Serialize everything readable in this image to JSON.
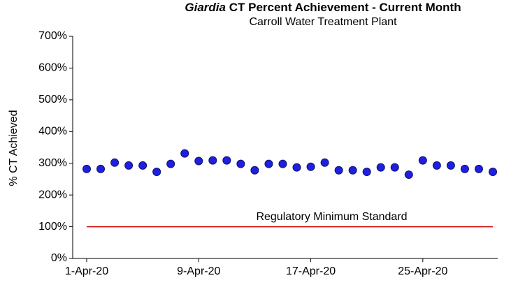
{
  "chart_data": {
    "type": "scatter",
    "title": {
      "italic": "Giardia",
      "rest": "CT Percent Achievement - Current Month"
    },
    "subtitle": "Carroll Water Treatment Plant",
    "y_label": "% CT Achieved",
    "x": [
      "2020-04-01",
      "2020-04-02",
      "2020-04-03",
      "2020-04-04",
      "2020-04-05",
      "2020-04-06",
      "2020-04-07",
      "2020-04-08",
      "2020-04-09",
      "2020-04-10",
      "2020-04-11",
      "2020-04-12",
      "2020-04-13",
      "2020-04-14",
      "2020-04-15",
      "2020-04-16",
      "2020-04-17",
      "2020-04-18",
      "2020-04-19",
      "2020-04-20",
      "2020-04-21",
      "2020-04-22",
      "2020-04-23",
      "2020-04-24",
      "2020-04-25",
      "2020-04-26",
      "2020-04-27",
      "2020-04-28",
      "2020-04-29",
      "2020-04-30"
    ],
    "series": [
      {
        "color": "#1f1fe0",
        "values": [
          282,
          282,
          302,
          293,
          293,
          273,
          298,
          331,
          307,
          309,
          309,
          298,
          278,
          298,
          298,
          287,
          289,
          302,
          278,
          278,
          273,
          287,
          287,
          264,
          309,
          293,
          293,
          282,
          282,
          273
        ]
      }
    ],
    "reference_line": {
      "value": 100,
      "label": "Regulatory Minimum Standard",
      "color": "#d00000"
    },
    "xlim": [
      "2020-04-01",
      "2020-04-30"
    ],
    "xticks": [
      {
        "value": "2020-04-01",
        "label": "1-Apr-20"
      },
      {
        "value": "2020-04-09",
        "label": "9-Apr-20"
      },
      {
        "value": "2020-04-17",
        "label": "17-Apr-20"
      },
      {
        "value": "2020-04-25",
        "label": "25-Apr-20"
      }
    ],
    "ylim": [
      0,
      700
    ],
    "yticks": [
      {
        "value": 0,
        "label": "0%"
      },
      {
        "value": 100,
        "label": "100%"
      },
      {
        "value": 200,
        "label": "200%"
      },
      {
        "value": 300,
        "label": "300%"
      },
      {
        "value": 400,
        "label": "400%"
      },
      {
        "value": 500,
        "label": "500%"
      },
      {
        "value": 600,
        "label": "600%"
      },
      {
        "value": 700,
        "label": "700%"
      }
    ],
    "grid": false
  }
}
